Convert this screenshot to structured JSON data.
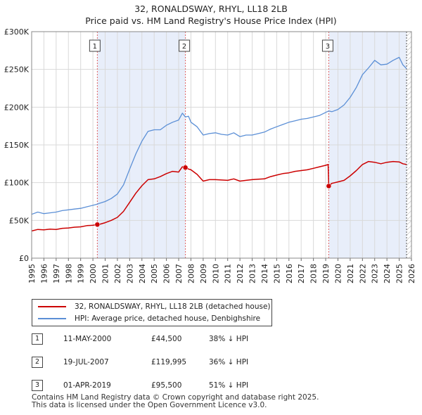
{
  "title": {
    "line1": "32, RONALDSWAY, RHYL, LL18 2LB",
    "line2": "Price paid vs. HM Land Registry's House Price Index (HPI)"
  },
  "legend": {
    "property_label": "32, RONALDSWAY, RHYL, LL18 2LB (detached house)",
    "hpi_label": "HPI: Average price, detached house, Denbighshire",
    "property_color": "#cc0000",
    "hpi_color": "#5b8fd6"
  },
  "sales": [
    {
      "num": "1",
      "date": "11-MAY-2000",
      "price": "£44,500",
      "hpi": "38% ↓ HPI"
    },
    {
      "num": "2",
      "date": "19-JUL-2007",
      "price": "£119,995",
      "hpi": "36% ↓ HPI"
    },
    {
      "num": "3",
      "date": "01-APR-2019",
      "price": "£95,500",
      "hpi": "51% ↓ HPI"
    }
  ],
  "footer": {
    "line1": "Contains HM Land Registry data © Crown copyright and database right 2025.",
    "line2": "This data is licensed under the Open Government Licence v3.0."
  },
  "chart_data": {
    "type": "line",
    "title": "Price paid vs. HM Land Registry's House Price Index (HPI)",
    "xlim": [
      1995,
      2026
    ],
    "ylim": [
      0,
      300000
    ],
    "x_ticks": [
      "1995",
      "1996",
      "1997",
      "1998",
      "1999",
      "2000",
      "2001",
      "2002",
      "2003",
      "2004",
      "2005",
      "2006",
      "2007",
      "2008",
      "2009",
      "2010",
      "2011",
      "2012",
      "2013",
      "2014",
      "2015",
      "2016",
      "2017",
      "2018",
      "2019",
      "2020",
      "2021",
      "2022",
      "2023",
      "2024",
      "2025",
      "2026"
    ],
    "y_ticks": [
      {
        "value": 0,
        "label": "£0"
      },
      {
        "value": 50000,
        "label": "£50K"
      },
      {
        "value": 100000,
        "label": "£100K"
      },
      {
        "value": 150000,
        "label": "£150K"
      },
      {
        "value": 200000,
        "label": "£200K"
      },
      {
        "value": 250000,
        "label": "£250K"
      },
      {
        "value": 300000,
        "label": "£300K"
      }
    ],
    "shaded_ranges": [
      [
        2000.36,
        2007.55
      ],
      [
        2019.25,
        2025.6
      ]
    ],
    "hatch_from": 2025.6,
    "series": [
      {
        "name": "HPI: Average price, detached house, Denbighshire",
        "color": "#5b8fd6",
        "x": [
          1995.0,
          1995.5,
          1996.0,
          1996.5,
          1997.0,
          1997.5,
          1998.0,
          1998.5,
          1999.0,
          1999.5,
          2000.0,
          2000.36,
          2000.5,
          2001.0,
          2001.5,
          2002.0,
          2002.5,
          2003.0,
          2003.5,
          2004.0,
          2004.5,
          2005.0,
          2005.5,
          2006.0,
          2006.5,
          2007.0,
          2007.3,
          2007.55,
          2007.8,
          2008.0,
          2008.5,
          2009.0,
          2009.5,
          2010.0,
          2010.5,
          2011.0,
          2011.5,
          2012.0,
          2012.5,
          2013.0,
          2013.5,
          2014.0,
          2014.5,
          2015.0,
          2015.5,
          2016.0,
          2016.5,
          2017.0,
          2017.5,
          2018.0,
          2018.5,
          2019.0,
          2019.25,
          2019.5,
          2020.0,
          2020.5,
          2021.0,
          2021.5,
          2022.0,
          2022.5,
          2023.0,
          2023.5,
          2024.0,
          2024.5,
          2025.0,
          2025.3,
          2025.6
        ],
        "y": [
          58000,
          61000,
          59000,
          60000,
          61000,
          63000,
          64000,
          65000,
          66000,
          68000,
          70000,
          71500,
          72500,
          75000,
          79000,
          85000,
          97000,
          118000,
          138000,
          155000,
          168000,
          170000,
          170000,
          176000,
          180000,
          183000,
          192000,
          187000,
          188000,
          180000,
          174000,
          163000,
          165000,
          166000,
          164000,
          163000,
          166000,
          161000,
          163000,
          163000,
          165000,
          167000,
          171000,
          174000,
          177000,
          180000,
          182000,
          184000,
          185000,
          187000,
          189000,
          193000,
          195000,
          194000,
          197000,
          203000,
          213000,
          226000,
          243000,
          252000,
          262000,
          256000,
          257000,
          262000,
          266000,
          256000,
          251000
        ]
      },
      {
        "name": "32, RONALDSWAY, RHYL, LL18 2LB (detached house)",
        "color": "#cc0000",
        "x": [
          1995.0,
          1995.5,
          1996.0,
          1996.5,
          1997.0,
          1997.5,
          1998.0,
          1998.5,
          1999.0,
          1999.5,
          2000.0,
          2000.36,
          2000.5,
          2001.0,
          2001.5,
          2002.0,
          2002.5,
          2003.0,
          2003.5,
          2004.0,
          2004.5,
          2005.0,
          2005.5,
          2006.0,
          2006.5,
          2007.0,
          2007.3,
          2007.55,
          2007.8,
          2008.0,
          2008.5,
          2009.0,
          2009.5,
          2010.0,
          2010.5,
          2011.0,
          2011.5,
          2012.0,
          2012.5,
          2013.0,
          2013.5,
          2014.0,
          2014.5,
          2015.0,
          2015.5,
          2016.0,
          2016.5,
          2017.0,
          2017.5,
          2018.0,
          2018.5,
          2019.0,
          2019.2,
          2019.25,
          2019.5,
          2020.0,
          2020.5,
          2021.0,
          2021.5,
          2022.0,
          2022.5,
          2023.0,
          2023.5,
          2024.0,
          2024.5,
          2025.0,
          2025.3,
          2025.6
        ],
        "y": [
          36000,
          38000,
          37500,
          38500,
          38000,
          39500,
          40000,
          41000,
          41500,
          43000,
          43500,
          44500,
          44600,
          47000,
          50000,
          54000,
          62000,
          74000,
          86000,
          96000,
          104000,
          105000,
          108000,
          112000,
          115000,
          114000,
          121000,
          119995,
          118000,
          117000,
          111000,
          102000,
          104000,
          104000,
          103500,
          103000,
          105000,
          102000,
          103000,
          104000,
          104500,
          105000,
          108000,
          110000,
          112000,
          113000,
          115000,
          116000,
          117000,
          119000,
          121000,
          123000,
          124000,
          95500,
          99000,
          101000,
          103000,
          109000,
          116000,
          124000,
          128000,
          127000,
          125000,
          127000,
          128000,
          127500,
          125000,
          124000
        ]
      }
    ],
    "sales": [
      {
        "label": "1",
        "x": 2000.36,
        "y": 44500
      },
      {
        "label": "2",
        "x": 2007.55,
        "y": 119995
      },
      {
        "label": "3",
        "x": 2019.25,
        "y": 95500
      }
    ]
  }
}
